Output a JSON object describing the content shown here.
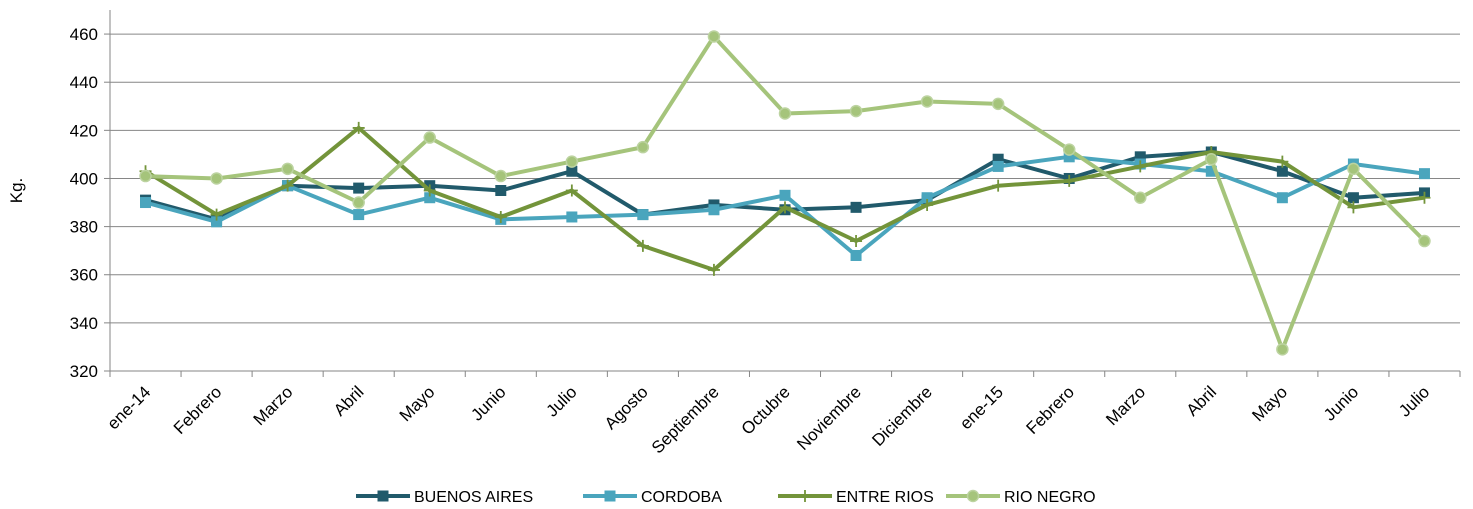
{
  "chart_data": {
    "type": "line",
    "title": "",
    "xlabel": "",
    "ylabel": "Kg.",
    "ylim": [
      320,
      470
    ],
    "yticks": [
      320,
      340,
      360,
      380,
      400,
      420,
      440,
      460
    ],
    "grid": "horizontal",
    "legend_position": "bottom",
    "categories": [
      "ene-14",
      "Febrero",
      "Marzo",
      "Abril",
      "Mayo",
      "Junio",
      "Julio",
      "Agosto",
      "Septiembre",
      "Octubre",
      "Noviembre",
      "Diciembre",
      "ene-15",
      "Febrero",
      "Marzo",
      "Abril",
      "Mayo",
      "Junio",
      "Julio"
    ],
    "series": [
      {
        "name": "BUENOS AIRES",
        "color": "#215a6b",
        "marker": "square",
        "values": [
          391,
          383,
          397,
          396,
          397,
          395,
          403,
          385,
          389,
          387,
          388,
          391,
          408,
          400,
          409,
          411,
          403,
          392,
          394
        ]
      },
      {
        "name": "CORDOBA",
        "color": "#4aa5bd",
        "marker": "square",
        "values": [
          390,
          382,
          397,
          385,
          392,
          383,
          384,
          385,
          387,
          393,
          368,
          392,
          405,
          409,
          406,
          403,
          392,
          406,
          402
        ]
      },
      {
        "name": "ENTRE RIOS",
        "color": "#73943a",
        "marker": "plus",
        "values": [
          403,
          385,
          397,
          421,
          395,
          384,
          395,
          372,
          362,
          388,
          374,
          389,
          397,
          399,
          405,
          411,
          407,
          388,
          392
        ]
      },
      {
        "name": "RIO NEGRO",
        "color": "#a5c47b",
        "marker": "circle",
        "values": [
          401,
          400,
          404,
          390,
          417,
          401,
          407,
          413,
          459,
          427,
          428,
          432,
          431,
          412,
          392,
          408,
          329,
          404,
          374
        ]
      }
    ]
  }
}
